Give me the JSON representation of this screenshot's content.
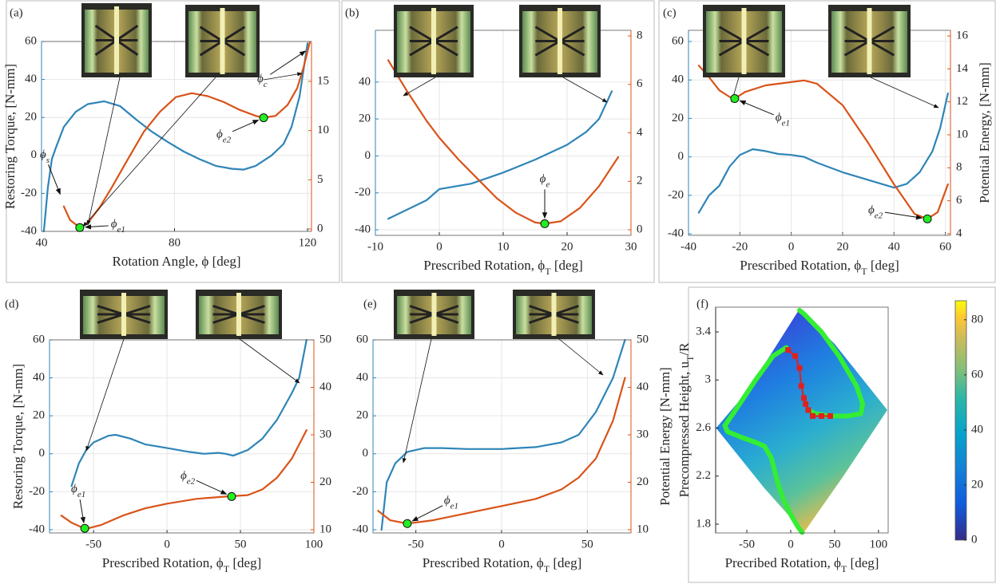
{
  "chart_data": [
    {
      "type": "line",
      "label": "(a)",
      "grid": true,
      "xlabel": [
        "Rotation Angle, ϕ [deg]"
      ],
      "ylabel": [
        "Restoring Torque, [N-mm]"
      ],
      "xlim": [
        40,
        121.2
      ],
      "xticks": [
        40,
        80,
        120
      ],
      "ylim": [
        -40,
        60
      ],
      "yticks": [
        -40,
        -20,
        0,
        20,
        40,
        60
      ],
      "y2lim": [
        -0.24,
        19.05
      ],
      "y2ticks": [
        0,
        5,
        10,
        15
      ],
      "series": [
        {
          "color": "#2f85b8",
          "axis": "y",
          "x": [
            40.7,
            41.9,
            43.1,
            44.3,
            46.7,
            50.3,
            53.9,
            58.8,
            63.6,
            68.4,
            73.2,
            78,
            82.8,
            87.6,
            92.4,
            97.2,
            100.8,
            104.4,
            109.2,
            112.8,
            115.2,
            117.6,
            120
          ],
          "values": [
            -40,
            -17,
            -2,
            4,
            15,
            23,
            27,
            28.5,
            26,
            19,
            12.5,
            7,
            2,
            -2,
            -5.5,
            -7,
            -7.5,
            -5.5,
            0,
            6,
            15,
            31,
            59
          ]
        },
        {
          "color": "#d95319",
          "axis": "y2",
          "x": [
            46.7,
            48.6,
            51.5,
            53.9,
            57.5,
            61.1,
            65.9,
            70.8,
            75.6,
            80.4,
            85.2,
            90,
            94.8,
            99.6,
            104.4,
            106.8,
            110.4,
            114,
            116.9,
            118.8,
            120.7
          ],
          "values": [
            2.3,
            0.9,
            0.15,
            0.6,
            2.2,
            4.2,
            7.05,
            9.9,
            11.9,
            13.4,
            13.8,
            13.5,
            12.9,
            12.1,
            11.5,
            11.3,
            11.5,
            12.6,
            14.3,
            16.4,
            19
          ]
        }
      ],
      "annotations": [
        {
          "symbol": "ϕ",
          "subscript": "s",
          "x": 46.25,
          "y": 3.0,
          "axis": "y2",
          "marker": false
        },
        {
          "symbol": "ϕ",
          "subscript": "e1",
          "x": 51.5,
          "y": 0.15,
          "axis": "y2",
          "marker": true
        },
        {
          "symbol": "ϕ",
          "subscript": "e2",
          "x": 106.8,
          "y": 11.3,
          "axis": "y2",
          "marker": true
        },
        {
          "symbol": "ϕ",
          "subscript": "c",
          "x": 120.8,
          "y": 18.4,
          "axis": "y2",
          "marker": false
        }
      ]
    },
    {
      "type": "line",
      "label": "(b)",
      "grid": true,
      "xlabel": [
        "Prescribed Rotation, ϕ",
        "T",
        " [deg]"
      ],
      "xlim": [
        -10,
        30
      ],
      "xticks": [
        -10,
        0,
        10,
        20,
        30
      ],
      "ylim": [
        -43,
        68
      ],
      "yticks": [
        -40,
        -20,
        0,
        20,
        40
      ],
      "y2lim": [
        -0.23,
        8.23
      ],
      "y2ticks": [
        0,
        2,
        4,
        6,
        8
      ],
      "series": [
        {
          "color": "#2f85b8",
          "axis": "y",
          "x": [
            -8,
            -5,
            -2,
            0,
            5,
            10,
            15,
            20,
            23,
            25,
            27
          ],
          "values": [
            -34,
            -29,
            -24,
            -18,
            -15,
            -9,
            -2,
            6,
            13,
            20,
            35
          ]
        },
        {
          "color": "#d95319",
          "axis": "y2",
          "x": [
            -8,
            -5,
            -2,
            0,
            3,
            6,
            9,
            12,
            15,
            16.5,
            19,
            22,
            25,
            28
          ],
          "values": [
            7,
            5.7,
            4.5,
            3.8,
            2.9,
            2.1,
            1.3,
            0.7,
            0.3,
            0.25,
            0.35,
            0.9,
            1.8,
            3
          ]
        }
      ],
      "annotations": [
        {
          "symbol": "ϕ",
          "subscript": "e",
          "x": 16.5,
          "y": 0.25,
          "axis": "y2",
          "marker": true
        }
      ]
    },
    {
      "type": "line",
      "label": "(c)",
      "grid": true,
      "xlabel": [
        "Prescribed Rotation, ϕ",
        "T",
        " [deg]"
      ],
      "y2label": [
        "Potential Energy, [N-mm]"
      ],
      "xlim": [
        -40,
        62
      ],
      "xticks": [
        -40,
        -20,
        0,
        20,
        40,
        60
      ],
      "ylim": [
        -40.8,
        65.8
      ],
      "yticks": [
        -40,
        -20,
        0,
        20,
        40,
        60
      ],
      "y2lim": [
        3.9,
        16.34
      ],
      "y2ticks": [
        4,
        6,
        8,
        10,
        12,
        14,
        16
      ],
      "series": [
        {
          "color": "#2f85b8",
          "axis": "y",
          "x": [
            -36,
            -32,
            -28,
            -24,
            -20,
            -15,
            -10,
            -5,
            0,
            5,
            10,
            20,
            30,
            40,
            45,
            50,
            55,
            58,
            61
          ],
          "values": [
            -29,
            -20,
            -15,
            -5,
            1,
            4,
            3,
            1.5,
            1,
            0,
            -3,
            -8,
            -12,
            -16,
            -14,
            -8,
            3,
            15,
            33
          ]
        },
        {
          "color": "#d95319",
          "axis": "y2",
          "x": [
            -36,
            -32,
            -28,
            -24,
            -22,
            -18,
            -10,
            0,
            5,
            10,
            20,
            30,
            40,
            48,
            53,
            57,
            61
          ],
          "values": [
            14.2,
            13.5,
            12.7,
            12.3,
            12.2,
            12.6,
            13,
            13.2,
            13.3,
            13.1,
            11.8,
            9.5,
            7,
            5.2,
            4.9,
            5.3,
            7
          ]
        }
      ],
      "annotations": [
        {
          "symbol": "ϕ",
          "subscript": "e1",
          "x": -22,
          "y": 12.2,
          "axis": "y2",
          "marker": true
        },
        {
          "symbol": "ϕ",
          "subscript": "e2",
          "x": 53,
          "y": 4.9,
          "axis": "y2",
          "marker": true
        }
      ]
    },
    {
      "type": "line",
      "label": "(d)",
      "grid": true,
      "xlabel": [
        "Prescribed Rotation, ϕ",
        "T",
        " [deg]"
      ],
      "ylabel": [
        "Restoring Torque, [N-mm]"
      ],
      "xlim": [
        -80,
        100
      ],
      "xticks": [
        -50,
        0,
        50,
        100
      ],
      "ylim": [
        -41.7,
        60
      ],
      "yticks": [
        -40,
        -20,
        0,
        20,
        40,
        60
      ],
      "y2lim": [
        9.33,
        50
      ],
      "y2ticks": [
        10,
        20,
        30,
        40,
        50
      ],
      "series": [
        {
          "color": "#2f85b8",
          "axis": "y",
          "x": [
            -65,
            -60,
            -55,
            -50,
            -40,
            -35,
            -25,
            -15,
            0,
            15,
            25,
            35,
            40,
            45,
            55,
            65,
            75,
            85,
            90,
            95
          ],
          "values": [
            -17,
            -5,
            2,
            6,
            9.5,
            10,
            8,
            5,
            3,
            1,
            0,
            0.5,
            0,
            -1,
            2,
            8,
            18,
            32,
            40,
            60
          ]
        },
        {
          "color": "#d95319",
          "axis": "y2",
          "x": [
            -72,
            -65,
            -58,
            -55,
            -45,
            -30,
            -15,
            0,
            20,
            40,
            55,
            65,
            75,
            85,
            95
          ],
          "values": [
            13,
            11.5,
            10.5,
            10.2,
            11,
            13,
            14.5,
            15.5,
            16.5,
            17,
            17.3,
            18.5,
            21,
            25,
            31
          ]
        }
      ],
      "annotations": [
        {
          "symbol": "ϕ",
          "subscript": "e1",
          "x": -56,
          "y": 10.3,
          "axis": "y2",
          "marker": true
        },
        {
          "symbol": "ϕ",
          "subscript": "e2",
          "x": 44,
          "y": 17,
          "axis": "y2",
          "marker": true
        }
      ]
    },
    {
      "type": "line",
      "label": "(e)",
      "grid": true,
      "xlabel": [
        "Prescribed Rotation, ϕ",
        "T",
        " [deg]"
      ],
      "y2label": [
        "Potential Energy [N-mm]"
      ],
      "xlim": [
        -75,
        75.5
      ],
      "xticks": [
        -50,
        0,
        50
      ],
      "ylim": [
        -41.7,
        60
      ],
      "yticks": [
        -40,
        -20,
        0,
        20,
        40,
        60
      ],
      "y2lim": [
        9.33,
        50
      ],
      "y2ticks": [
        10,
        20,
        30,
        40,
        50
      ],
      "series": [
        {
          "color": "#2f85b8",
          "axis": "y",
          "x": [
            -70,
            -67,
            -62,
            -55,
            -45,
            -35,
            -20,
            0,
            20,
            35,
            45,
            55,
            65,
            72
          ],
          "values": [
            -40,
            -15,
            -5,
            1,
            3,
            3,
            2.5,
            2.5,
            3.5,
            6,
            10,
            22,
            40,
            60
          ]
        },
        {
          "color": "#d95319",
          "axis": "y2",
          "x": [
            -72,
            -65,
            -55,
            -40,
            -20,
            0,
            20,
            35,
            45,
            55,
            65,
            72
          ],
          "values": [
            14,
            12,
            11.3,
            12,
            13.5,
            15,
            16.5,
            18.5,
            21,
            25,
            33,
            42
          ]
        }
      ],
      "annotations": [
        {
          "symbol": "ϕ",
          "subscript": "e1",
          "x": -55,
          "y": 11.3,
          "axis": "y2",
          "marker": true
        }
      ]
    },
    {
      "type": "line",
      "label": "(f)",
      "grid": false,
      "xlabel": [
        "Precribed Rotation, ϕ",
        "T",
        " [deg]"
      ],
      "ylabel": [
        "Precompressed Height, u",
        "T",
        "/R"
      ],
      "xlim": [
        -85.5,
        111
      ],
      "xticks": [
        -50,
        0,
        50,
        100
      ],
      "ylim": [
        1.727,
        3.606
      ],
      "yticks": [
        1.8,
        2.2,
        2.6,
        3,
        3.4
      ],
      "colorbar": {
        "clim": [
          0,
          86.9
        ],
        "ticks": [
          0,
          20,
          40,
          60,
          80
        ]
      },
      "series": [
        {
          "color": "#33ee33",
          "axis": "y",
          "x": [
            10,
            15,
            35,
            55,
            75,
            82,
            80,
            65,
            45,
            28,
            20,
            null,
            -5,
            -20,
            -40,
            -60,
            -75,
            -72,
            -55,
            -40,
            -30,
            -22,
            -15,
            -8,
            0,
            8,
            13
          ],
          "values": [
            3.58,
            3.55,
            3.4,
            3.2,
            2.95,
            2.8,
            2.72,
            2.7,
            2.7,
            2.72,
            2.75,
            null,
            3.27,
            3.2,
            3.0,
            2.78,
            2.62,
            2.57,
            2.52,
            2.48,
            2.45,
            2.35,
            2.15,
            2.0,
            1.88,
            1.78,
            1.73
          ]
        },
        {
          "color": "#e02020",
          "axis": "y",
          "marker": "square",
          "x": [
            -3,
            5,
            10,
            12,
            15,
            17,
            20,
            25,
            35,
            45
          ],
          "values": [
            3.25,
            3.2,
            3.1,
            2.95,
            2.85,
            2.8,
            2.75,
            2.7,
            2.7,
            2.7
          ]
        }
      ],
      "annotations": []
    }
  ]
}
